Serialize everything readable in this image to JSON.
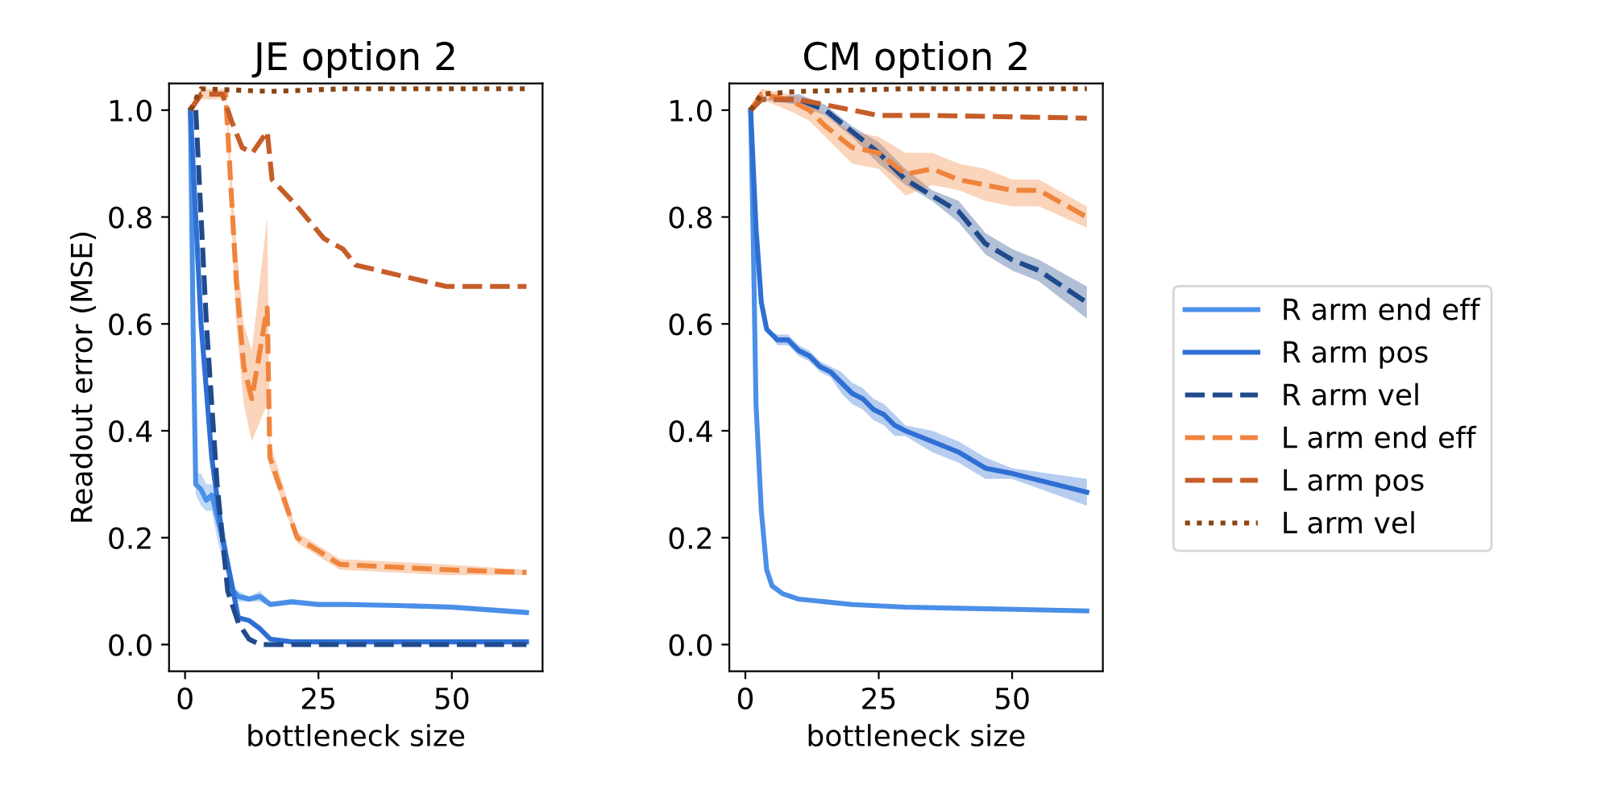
{
  "chart_data": [
    {
      "type": "line",
      "title": "JE option 2",
      "xlabel": "bottleneck size",
      "ylabel": "Readout error (MSE)",
      "xlim": [
        -3,
        67
      ],
      "xticks": [
        0,
        25,
        50
      ],
      "ylim": [
        -0.05,
        1.05
      ],
      "yticks": [
        {
          "value": 0,
          "label": "0.0"
        },
        {
          "value": 0.2,
          "label": "0.2"
        },
        {
          "value": 0.4,
          "label": "0.4"
        },
        {
          "value": 0.6,
          "label": "0.6"
        },
        {
          "value": 0.8,
          "label": "0.8"
        },
        {
          "value": 1.0,
          "label": "1.0"
        }
      ],
      "grid": false,
      "marker": "none",
      "series": [
        {
          "color": "#4a8fe8",
          "line_style": "solid",
          "x": [
            1,
            1.5,
            2,
            3,
            4,
            5,
            6,
            7,
            8,
            9,
            10,
            12,
            14,
            16,
            20,
            25,
            30,
            40,
            50,
            64
          ],
          "values": [
            1.0,
            0.6,
            0.3,
            0.29,
            0.27,
            0.28,
            0.24,
            0.2,
            0.15,
            0.1,
            0.09,
            0.085,
            0.09,
            0.075,
            0.08,
            0.075,
            0.075,
            0.073,
            0.07,
            0.06
          ],
          "lower": [
            1.0,
            0.58,
            0.28,
            0.26,
            0.25,
            0.25,
            0.2,
            0.16,
            0.12,
            0.09,
            0.08,
            0.08,
            0.08,
            0.07,
            0.075,
            0.07,
            0.07,
            0.07,
            0.065,
            0.055
          ],
          "upper": [
            1.0,
            0.62,
            0.32,
            0.32,
            0.3,
            0.3,
            0.28,
            0.24,
            0.18,
            0.11,
            0.1,
            0.09,
            0.1,
            0.08,
            0.085,
            0.08,
            0.08,
            0.076,
            0.075,
            0.065
          ]
        },
        {
          "color": "#2e6fd4",
          "line_style": "solid",
          "x": [
            1,
            3,
            5,
            7,
            9,
            10,
            12,
            14,
            16,
            20,
            30,
            64
          ],
          "values": [
            1.0,
            0.6,
            0.35,
            0.2,
            0.1,
            0.05,
            0.045,
            0.03,
            0.01,
            0.005,
            0.005,
            0.005
          ]
        },
        {
          "color": "#1f4a8c",
          "line_style": "dashed",
          "x": [
            2,
            4,
            6,
            8,
            10,
            12,
            14,
            20,
            40,
            64
          ],
          "values": [
            1.0,
            0.6,
            0.3,
            0.1,
            0.04,
            0.01,
            0.0,
            0.0,
            0.0,
            0.0
          ]
        },
        {
          "color": "#f0843c",
          "line_style": "dashed",
          "x": [
            1,
            3,
            5,
            7.6,
            9.6,
            11,
            12.5,
            15.4,
            15.9,
            21,
            29,
            49,
            64
          ],
          "values": [
            1.0,
            1.03,
            1.03,
            1.03,
            0.68,
            0.52,
            0.46,
            0.63,
            0.35,
            0.2,
            0.15,
            0.14,
            0.135
          ],
          "lower": [
            1.0,
            1.02,
            1.02,
            1.02,
            0.6,
            0.45,
            0.38,
            0.45,
            0.33,
            0.19,
            0.14,
            0.13,
            0.13
          ],
          "upper": [
            1.0,
            1.04,
            1.04,
            1.04,
            0.75,
            0.6,
            0.55,
            0.8,
            0.38,
            0.21,
            0.16,
            0.15,
            0.14
          ]
        },
        {
          "color": "#c65d28",
          "line_style": "dashed",
          "x": [
            1,
            3,
            7,
            8.7,
            10.7,
            12.6,
            15.4,
            16.3,
            21,
            26,
            29.6,
            32,
            49,
            64
          ],
          "values": [
            1.0,
            1.03,
            1.03,
            0.98,
            0.93,
            0.92,
            0.96,
            0.87,
            0.82,
            0.76,
            0.74,
            0.71,
            0.67,
            0.67
          ]
        },
        {
          "color": "#8b4513",
          "line_style": "dotted",
          "x": [
            1,
            3,
            16,
            30,
            64
          ],
          "values": [
            1.0,
            1.04,
            1.035,
            1.04,
            1.04
          ]
        }
      ]
    },
    {
      "type": "line",
      "title": "CM option 2",
      "xlabel": "bottleneck size",
      "xlim": [
        -3,
        67
      ],
      "xticks": [
        0,
        25,
        50
      ],
      "ylim": [
        -0.05,
        1.05
      ],
      "yticks": [
        {
          "value": 0,
          "label": "0.0"
        },
        {
          "value": 0.2,
          "label": "0.2"
        },
        {
          "value": 0.4,
          "label": "0.4"
        },
        {
          "value": 0.6,
          "label": "0.6"
        },
        {
          "value": 0.8,
          "label": "0.8"
        },
        {
          "value": 1.0,
          "label": "1.0"
        }
      ],
      "grid": false,
      "marker": "none",
      "legend": "right",
      "series": [
        {
          "name": "R arm end eff",
          "color": "#4a8fe8",
          "line_style": "solid",
          "x": [
            1,
            1.5,
            2,
            3,
            4,
            5,
            7,
            10,
            15,
            20,
            30,
            40,
            64
          ],
          "values": [
            1.0,
            0.75,
            0.45,
            0.25,
            0.14,
            0.11,
            0.095,
            0.085,
            0.08,
            0.075,
            0.07,
            0.068,
            0.063
          ]
        },
        {
          "name": "R arm pos",
          "color": "#2e6fd4",
          "line_style": "solid",
          "x": [
            1,
            2,
            3,
            4,
            6,
            8,
            10,
            12,
            14,
            16,
            18,
            20,
            22,
            24,
            26,
            28,
            30,
            35,
            40,
            45,
            50,
            64
          ],
          "values": [
            1.0,
            0.78,
            0.64,
            0.59,
            0.57,
            0.57,
            0.55,
            0.54,
            0.52,
            0.51,
            0.49,
            0.47,
            0.46,
            0.44,
            0.43,
            0.41,
            0.4,
            0.38,
            0.36,
            0.33,
            0.32,
            0.285
          ],
          "lower": [
            1.0,
            0.78,
            0.64,
            0.59,
            0.56,
            0.56,
            0.54,
            0.53,
            0.51,
            0.5,
            0.47,
            0.45,
            0.44,
            0.42,
            0.41,
            0.39,
            0.39,
            0.36,
            0.34,
            0.31,
            0.31,
            0.26
          ],
          "upper": [
            1.0,
            0.78,
            0.64,
            0.59,
            0.58,
            0.58,
            0.56,
            0.55,
            0.53,
            0.52,
            0.51,
            0.49,
            0.48,
            0.46,
            0.45,
            0.43,
            0.41,
            0.4,
            0.38,
            0.35,
            0.33,
            0.31
          ]
        },
        {
          "name": "R arm vel",
          "color": "#1f4a8c",
          "line_style": "dashed",
          "x": [
            1,
            3,
            10,
            15,
            20,
            25,
            30,
            35,
            40,
            45,
            50,
            55,
            64
          ],
          "values": [
            1.0,
            1.02,
            1.02,
            1.0,
            0.96,
            0.92,
            0.87,
            0.84,
            0.81,
            0.75,
            0.72,
            0.7,
            0.64
          ],
          "lower": [
            1.0,
            1.02,
            1.01,
            0.99,
            0.95,
            0.9,
            0.86,
            0.83,
            0.79,
            0.73,
            0.7,
            0.68,
            0.61
          ],
          "upper": [
            1.0,
            1.02,
            1.03,
            1.01,
            0.97,
            0.94,
            0.89,
            0.85,
            0.83,
            0.77,
            0.74,
            0.72,
            0.67
          ]
        },
        {
          "name": "L arm end eff",
          "color": "#f0843c",
          "line_style": "dashed",
          "x": [
            1,
            3,
            8,
            12,
            15,
            20,
            25,
            30,
            35,
            40,
            45,
            50,
            55,
            64
          ],
          "values": [
            1.0,
            1.03,
            1.02,
            1.0,
            0.97,
            0.93,
            0.92,
            0.88,
            0.89,
            0.87,
            0.86,
            0.85,
            0.85,
            0.8
          ],
          "lower": [
            1.0,
            1.02,
            1.0,
            0.98,
            0.95,
            0.9,
            0.89,
            0.84,
            0.86,
            0.85,
            0.83,
            0.82,
            0.82,
            0.78
          ],
          "upper": [
            1.0,
            1.04,
            1.03,
            1.02,
            0.99,
            0.96,
            0.95,
            0.92,
            0.92,
            0.9,
            0.89,
            0.87,
            0.87,
            0.82
          ]
        },
        {
          "name": "L arm pos",
          "color": "#c65d28",
          "line_style": "dashed",
          "x": [
            1,
            3,
            10,
            15,
            20,
            25,
            30,
            35,
            64
          ],
          "values": [
            1.0,
            1.02,
            1.02,
            1.01,
            1.0,
            0.99,
            0.99,
            0.99,
            0.985
          ]
        },
        {
          "name": "L arm vel",
          "color": "#8b4513",
          "line_style": "dotted",
          "x": [
            1,
            3,
            10,
            30,
            64
          ],
          "values": [
            1.0,
            1.03,
            1.035,
            1.04,
            1.04
          ]
        }
      ]
    }
  ]
}
